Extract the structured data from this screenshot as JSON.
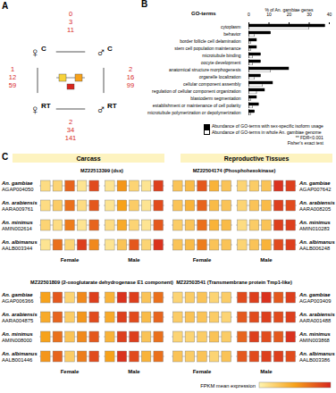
{
  "panel_a": {
    "label": "A",
    "nodes": [
      {
        "sex": "♀",
        "tissue": "C"
      },
      {
        "sex": "♂",
        "tissue": "C"
      },
      {
        "sex": "♀",
        "tissue": "RT"
      },
      {
        "sex": "♂",
        "tissue": "RT"
      }
    ],
    "comparisons": [
      {
        "values": [
          0,
          3,
          11
        ]
      },
      {
        "values": [
          1,
          12,
          59
        ]
      },
      {
        "values": [
          2,
          16,
          99
        ]
      },
      {
        "values": [
          2,
          34,
          141
        ]
      }
    ]
  },
  "chart_data": {
    "type": "bar",
    "label": "B",
    "title": "% of An. gambiae genes",
    "y_label": "GO-terms",
    "orientation": "horizontal",
    "categories": [
      "cytoplasm",
      "behavior",
      "border follicle cell delamination",
      "stem cell population maintenance",
      "microtubule binding",
      "oocyte development",
      "anatomical structure morphogenesis",
      "organelle localization",
      "cellular component assembly",
      "regulation of cellular component organization",
      "blastoderm segmentation",
      "establishment or maintenance of cell polarity",
      "microtubule polymerization or depolymerization"
    ],
    "series": [
      {
        "name": "Abundance of GO-terms with sex-specific isoform usage",
        "color": "#000000",
        "values": [
          38,
          11,
          4,
          4,
          6,
          6,
          20,
          6,
          12,
          8,
          4,
          5,
          3
        ]
      },
      {
        "name": "Abundance of GO-terms in whole An. gambiae genome",
        "color": "#ffffff",
        "values": [
          30,
          3,
          1,
          1,
          2,
          2,
          11,
          3,
          7,
          4,
          1,
          2,
          1
        ]
      }
    ],
    "xlim": [
      0,
      40
    ],
    "xticks": [
      0,
      10,
      20,
      30,
      40
    ],
    "notes": [
      "** FDR<0.001",
      "Fisher's exact test"
    ]
  },
  "panel_c": {
    "label": "C",
    "tissues": [
      "Carcass",
      "Reproductive Tissues"
    ],
    "sex_labels": [
      "Female",
      "Male"
    ],
    "colorbar": {
      "label": "FPKM mean expression",
      "range": [
        0,
        1
      ],
      "colors": [
        "#fff5b0",
        "#f7a21b",
        "#d7261e"
      ]
    },
    "genes": [
      {
        "tissue": "Carcass",
        "title": "MZ22513399 (dsx)",
        "rows": [
          {
            "species": "An. gambiae",
            "id": "AGAP004050",
            "female": [
              0.15,
              0.2,
              0.75,
              0.1,
              0.85
            ],
            "male": [
              0.1,
              0.55,
              0.2,
              0.1,
              0.9
            ]
          },
          {
            "species": "An. arabiensis",
            "id": "AARA009761",
            "female": [
              0.15,
              0.25,
              0.7,
              0.15,
              0.8
            ],
            "male": [
              0.1,
              0.5,
              0.25,
              0.1,
              0.85
            ]
          },
          {
            "species": "An. minimus",
            "id": "AMIN002614",
            "female": [
              0.2,
              0.15,
              0.65,
              0.1,
              0.75
            ],
            "male": [
              0.15,
              0.45,
              0.2,
              0.1,
              0.8
            ]
          },
          {
            "species": "An. albimanus",
            "id": "AALB003344",
            "female": [
              0.1,
              0.7,
              0.2,
              0.9,
              0.6
            ],
            "male": [
              0.1,
              0.3,
              0.8,
              0.2,
              0.95
            ]
          }
        ]
      },
      {
        "tissue": "Reproductive Tissues",
        "title": "MZ22504174 (Phosphohexokinase)",
        "rows": [
          {
            "species": "An. gambiae",
            "id": "AGAP007642",
            "female": [
              0.3,
              0.35,
              0.8,
              0.4,
              0.3
            ],
            "male": [
              0.2,
              0.25,
              0.3,
              0.95,
              0.9
            ]
          },
          {
            "species": "An. arabiensis",
            "id": "AARA008205",
            "female": [
              0.3,
              0.4,
              0.75,
              0.35,
              0.3
            ],
            "male": [
              0.2,
              0.3,
              0.35,
              0.9,
              0.85
            ]
          },
          {
            "species": "An. minimus",
            "id": "AMIN010283",
            "female": [
              0.25,
              0.3,
              0.7,
              0.4,
              0.35
            ],
            "male": [
              0.15,
              0.25,
              0.3,
              0.9,
              0.9
            ]
          },
          {
            "species": "An. albimanus",
            "id": "AALB006248",
            "female": [
              0.3,
              0.35,
              0.65,
              0.3,
              0.3
            ],
            "male": [
              0.2,
              0.3,
              0.4,
              0.85,
              0.9
            ]
          }
        ]
      },
      {
        "tissue": "Carcass",
        "title": "MZ22501809 (2-oxoglutarate dehydrogenase E1 component)",
        "rows": [
          {
            "species": "An. gambiae",
            "id": "AGAP006366",
            "female": [
              0.5,
              0.8,
              0.2,
              0.6,
              0.9
            ],
            "male": [
              0.4,
              0.95,
              0.9,
              0.3,
              0.7
            ]
          },
          {
            "species": "An. arabiensis",
            "id": "AARA004875",
            "female": [
              0.45,
              0.75,
              0.25,
              0.55,
              0.85
            ],
            "male": [
              0.45,
              0.9,
              0.85,
              0.35,
              0.75
            ]
          },
          {
            "species": "An. minimus",
            "id": "AMIN008000",
            "female": [
              0.5,
              0.7,
              0.3,
              0.6,
              0.8
            ],
            "male": [
              0.4,
              0.9,
              0.9,
              0.3,
              0.7
            ]
          },
          {
            "species": "An. albimanus",
            "id": "AALB001446",
            "female": [
              0.55,
              0.75,
              0.25,
              0.65,
              0.85
            ],
            "male": [
              0.5,
              0.95,
              0.85,
              0.4,
              0.7
            ]
          }
        ]
      },
      {
        "tissue": "Reproductive Tissues",
        "title": "MZ22503541 (Transmembrane protein Tmp1-like)",
        "rows": [
          {
            "species": "An. gambiae",
            "id": "AGAP003409",
            "female": [
              0.2,
              0.25,
              0.3,
              0.2,
              0.25
            ],
            "male": [
              0.85,
              0.9,
              0.95,
              0.8,
              0.9
            ]
          },
          {
            "species": "An. arabiensis",
            "id": "AARA001488",
            "female": [
              0.25,
              0.3,
              0.3,
              0.25,
              0.2
            ],
            "male": [
              0.8,
              0.85,
              0.9,
              0.85,
              0.9
            ]
          },
          {
            "species": "An. minimus",
            "id": "AMIN003868",
            "female": [
              0.2,
              0.2,
              0.25,
              0.3,
              0.25
            ],
            "male": [
              0.75,
              0.9,
              0.85,
              0.8,
              0.95
            ]
          },
          {
            "species": "An. albimanus",
            "id": "AALB003386",
            "female": [
              0.3,
              0.25,
              0.3,
              0.2,
              0.3
            ],
            "male": [
              0.8,
              0.85,
              0.9,
              0.9,
              0.85
            ]
          }
        ]
      }
    ]
  }
}
